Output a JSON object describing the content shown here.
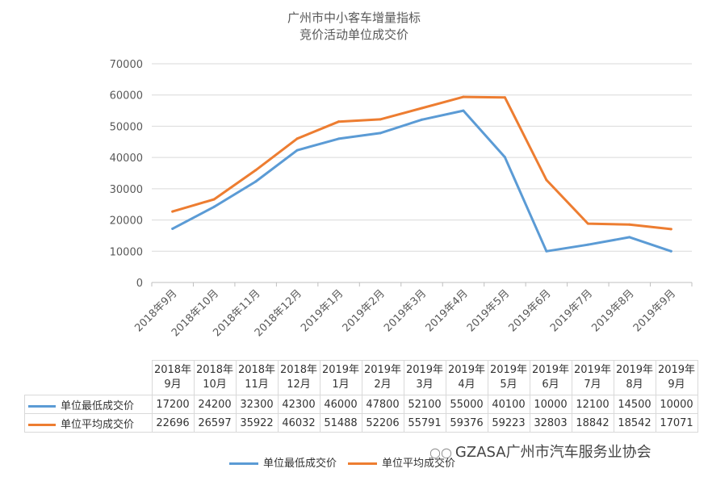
{
  "chart_data": {
    "type": "line",
    "title": [
      "广州市中小客车增量指标",
      "竞价活动单位成交价"
    ],
    "categories": [
      "2018年9月",
      "2018年10月",
      "2018年11月",
      "2018年12月",
      "2019年1月",
      "2019年2月",
      "2019年3月",
      "2019年4月",
      "2019年5月",
      "2019年6月",
      "2019年7月",
      "2019年8月",
      "2019年9月"
    ],
    "table_headers": [
      [
        "2018年",
        "9月"
      ],
      [
        "2018年",
        "10月"
      ],
      [
        "2018年",
        "11月"
      ],
      [
        "2018年",
        "12月"
      ],
      [
        "2019年",
        "1月"
      ],
      [
        "2019年",
        "2月"
      ],
      [
        "2019年",
        "3月"
      ],
      [
        "2019年",
        "4月"
      ],
      [
        "2019年",
        "5月"
      ],
      [
        "2019年",
        "6月"
      ],
      [
        "2019年",
        "7月"
      ],
      [
        "2019年",
        "8月"
      ],
      [
        "2019年",
        "9月"
      ]
    ],
    "series": [
      {
        "name": "单位最低成交价",
        "color": "#5b9bd5",
        "values": [
          17200,
          24200,
          32300,
          42300,
          46000,
          47800,
          52100,
          55000,
          40100,
          10000,
          12100,
          14500,
          10000
        ]
      },
      {
        "name": "单位平均成交价",
        "color": "#ed7d31",
        "values": [
          22696,
          26597,
          35922,
          46032,
          51488,
          52206,
          55791,
          59376,
          59223,
          32803,
          18842,
          18542,
          17071
        ]
      }
    ],
    "ylim": [
      0,
      70000
    ],
    "yticks": [
      0,
      10000,
      20000,
      30000,
      40000,
      50000,
      60000,
      70000
    ],
    "grid": true,
    "legend": "bottom"
  },
  "watermark": "GZASA广州市汽车服务业协会"
}
